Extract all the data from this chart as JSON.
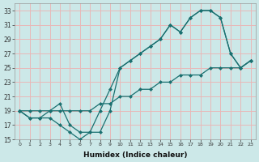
{
  "xlabel": "Humidex (Indice chaleur)",
  "bg_color": "#cce8e8",
  "grid_color": "#e8b8b8",
  "line_color": "#1a7070",
  "xlim": [
    -0.5,
    23.5
  ],
  "ylim": [
    15,
    34
  ],
  "xticks": [
    0,
    1,
    2,
    3,
    4,
    5,
    6,
    7,
    8,
    9,
    10,
    11,
    12,
    13,
    14,
    15,
    16,
    17,
    18,
    19,
    20,
    21,
    22,
    23
  ],
  "yticks": [
    15,
    17,
    19,
    21,
    23,
    25,
    27,
    29,
    31,
    33
  ],
  "line1_x": [
    0,
    1,
    2,
    3,
    4,
    5,
    6,
    7,
    8,
    9,
    10,
    11,
    12,
    13,
    14,
    15,
    16,
    17,
    18,
    19,
    20,
    21,
    22,
    23
  ],
  "line1_y": [
    19,
    18,
    18,
    19,
    20,
    17,
    16,
    16,
    19,
    22,
    25,
    26,
    27,
    28,
    29,
    31,
    30,
    32,
    33,
    33,
    32,
    27,
    25,
    26
  ],
  "line2_x": [
    0,
    1,
    2,
    3,
    4,
    5,
    6,
    7,
    8,
    9,
    10,
    11,
    12,
    13,
    14,
    15,
    16,
    17,
    18,
    19,
    20,
    21,
    22,
    23
  ],
  "line2_y": [
    19,
    18,
    18,
    18,
    17,
    16,
    15,
    16,
    16,
    19,
    25,
    26,
    27,
    28,
    29,
    31,
    30,
    32,
    33,
    33,
    32,
    27,
    25,
    26
  ],
  "line3_x": [
    0,
    1,
    2,
    3,
    4,
    5,
    6,
    7,
    8,
    9,
    10,
    11,
    12,
    13,
    14,
    15,
    16,
    17,
    18,
    19,
    20,
    21,
    22,
    23
  ],
  "line3_y": [
    19,
    19,
    19,
    19,
    19,
    19,
    19,
    19,
    20,
    20,
    21,
    21,
    22,
    22,
    23,
    23,
    24,
    24,
    24,
    25,
    25,
    25,
    25,
    26
  ]
}
